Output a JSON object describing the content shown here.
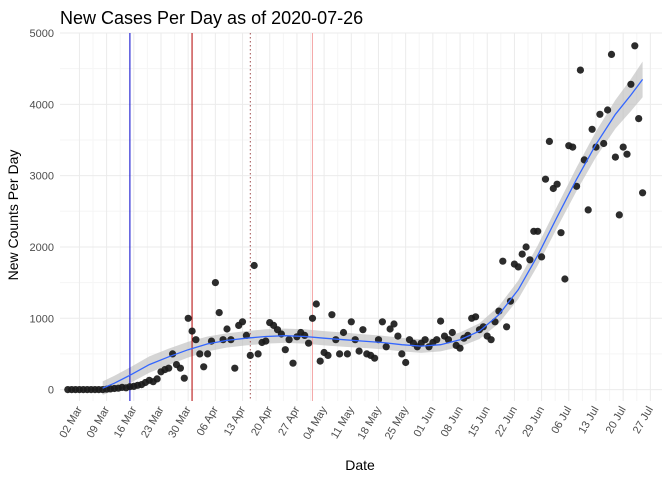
{
  "chart_data": {
    "type": "scatter",
    "title": "New Cases Per Day as of 2020-07-26",
    "xlabel": "Date",
    "ylabel": "New Counts Per Day",
    "x_start": "2020-02-26",
    "xlim": [
      "2020-02-26",
      "2020-07-30"
    ],
    "ylim": [
      -160,
      5000
    ],
    "y_ticks": [
      0,
      1000,
      2000,
      3000,
      4000,
      5000
    ],
    "x_ticks": [
      {
        "date": "2020-03-02",
        "label": "02 Mar"
      },
      {
        "date": "2020-03-09",
        "label": "09 Mar"
      },
      {
        "date": "2020-03-16",
        "label": "16 Mar"
      },
      {
        "date": "2020-03-23",
        "label": "23 Mar"
      },
      {
        "date": "2020-03-30",
        "label": "30 Mar"
      },
      {
        "date": "2020-04-06",
        "label": "06 Apr"
      },
      {
        "date": "2020-04-13",
        "label": "13 Apr"
      },
      {
        "date": "2020-04-20",
        "label": "20 Apr"
      },
      {
        "date": "2020-04-27",
        "label": "27 Apr"
      },
      {
        "date": "2020-05-04",
        "label": "04 May"
      },
      {
        "date": "2020-05-11",
        "label": "11 May"
      },
      {
        "date": "2020-05-18",
        "label": "18 May"
      },
      {
        "date": "2020-05-25",
        "label": "25 May"
      },
      {
        "date": "2020-06-01",
        "label": "01 Jun"
      },
      {
        "date": "2020-06-08",
        "label": "08 Jun"
      },
      {
        "date": "2020-06-15",
        "label": "15 Jun"
      },
      {
        "date": "2020-06-22",
        "label": "22 Jun"
      },
      {
        "date": "2020-06-29",
        "label": "29 Jun"
      },
      {
        "date": "2020-07-06",
        "label": "06 Jul"
      },
      {
        "date": "2020-07-13",
        "label": "13 Jul"
      },
      {
        "date": "2020-07-20",
        "label": "20 Jul"
      },
      {
        "date": "2020-07-27",
        "label": "27 Jul"
      }
    ],
    "grid": true,
    "colors": {
      "points": "#1a1a1a",
      "smooth_line": "#3366ff",
      "ribbon": "#bfbfbf",
      "vline_blue": "#0000cc",
      "vline_red": "#b30000",
      "vline_dotted": "#a05050",
      "vline_pink": "#f4a6a6",
      "grid_major": "#ebebeb",
      "grid_minor": "#f5f5f5"
    },
    "vlines": [
      {
        "date": "2020-03-15",
        "color": "#0000cc",
        "style": "solid"
      },
      {
        "date": "2020-03-31",
        "color": "#b30000",
        "style": "solid"
      },
      {
        "date": "2020-04-15",
        "color": "#a05050",
        "style": "dotted"
      },
      {
        "date": "2020-05-01",
        "color": "#f4a6a6",
        "style": "solid"
      }
    ],
    "series": [
      {
        "type": "scatter",
        "values": [
          [
            "2020-02-28",
            0
          ],
          [
            "2020-02-29",
            0
          ],
          [
            "2020-03-01",
            0
          ],
          [
            "2020-03-02",
            0
          ],
          [
            "2020-03-03",
            0
          ],
          [
            "2020-03-04",
            0
          ],
          [
            "2020-03-05",
            0
          ],
          [
            "2020-03-06",
            0
          ],
          [
            "2020-03-07",
            0
          ],
          [
            "2020-03-08",
            0
          ],
          [
            "2020-03-09",
            5
          ],
          [
            "2020-03-10",
            10
          ],
          [
            "2020-03-11",
            15
          ],
          [
            "2020-03-12",
            20
          ],
          [
            "2020-03-13",
            30
          ],
          [
            "2020-03-14",
            25
          ],
          [
            "2020-03-15",
            40
          ],
          [
            "2020-03-16",
            45
          ],
          [
            "2020-03-17",
            60
          ],
          [
            "2020-03-18",
            70
          ],
          [
            "2020-03-19",
            100
          ],
          [
            "2020-03-20",
            130
          ],
          [
            "2020-03-21",
            110
          ],
          [
            "2020-03-22",
            150
          ],
          [
            "2020-03-23",
            250
          ],
          [
            "2020-03-24",
            280
          ],
          [
            "2020-03-25",
            300
          ],
          [
            "2020-03-26",
            500
          ],
          [
            "2020-03-27",
            350
          ],
          [
            "2020-03-28",
            300
          ],
          [
            "2020-03-29",
            160
          ],
          [
            "2020-03-30",
            1000
          ],
          [
            "2020-03-31",
            820
          ],
          [
            "2020-04-01",
            700
          ],
          [
            "2020-04-02",
            500
          ],
          [
            "2020-04-03",
            320
          ],
          [
            "2020-04-04",
            500
          ],
          [
            "2020-04-05",
            680
          ],
          [
            "2020-04-06",
            1500
          ],
          [
            "2020-04-07",
            1080
          ],
          [
            "2020-04-08",
            700
          ],
          [
            "2020-04-09",
            850
          ],
          [
            "2020-04-10",
            700
          ],
          [
            "2020-04-11",
            300
          ],
          [
            "2020-04-12",
            900
          ],
          [
            "2020-04-13",
            950
          ],
          [
            "2020-04-14",
            760
          ],
          [
            "2020-04-15",
            480
          ],
          [
            "2020-04-16",
            1740
          ],
          [
            "2020-04-17",
            500
          ],
          [
            "2020-04-18",
            660
          ],
          [
            "2020-04-19",
            680
          ],
          [
            "2020-04-20",
            940
          ],
          [
            "2020-04-21",
            900
          ],
          [
            "2020-04-22",
            840
          ],
          [
            "2020-04-23",
            780
          ],
          [
            "2020-04-24",
            560
          ],
          [
            "2020-04-25",
            700
          ],
          [
            "2020-04-26",
            370
          ],
          [
            "2020-04-27",
            740
          ],
          [
            "2020-04-28",
            800
          ],
          [
            "2020-04-29",
            760
          ],
          [
            "2020-04-30",
            650
          ],
          [
            "2020-05-01",
            1000
          ],
          [
            "2020-05-02",
            1200
          ],
          [
            "2020-05-03",
            400
          ],
          [
            "2020-05-04",
            520
          ],
          [
            "2020-05-05",
            480
          ],
          [
            "2020-05-06",
            1050
          ],
          [
            "2020-05-07",
            700
          ],
          [
            "2020-05-08",
            500
          ],
          [
            "2020-05-09",
            800
          ],
          [
            "2020-05-10",
            500
          ],
          [
            "2020-05-11",
            950
          ],
          [
            "2020-05-12",
            700
          ],
          [
            "2020-05-13",
            540
          ],
          [
            "2020-05-14",
            840
          ],
          [
            "2020-05-15",
            500
          ],
          [
            "2020-05-16",
            480
          ],
          [
            "2020-05-17",
            440
          ],
          [
            "2020-05-18",
            700
          ],
          [
            "2020-05-19",
            950
          ],
          [
            "2020-05-20",
            600
          ],
          [
            "2020-05-21",
            850
          ],
          [
            "2020-05-22",
            920
          ],
          [
            "2020-05-23",
            750
          ],
          [
            "2020-05-24",
            500
          ],
          [
            "2020-05-25",
            380
          ],
          [
            "2020-05-26",
            700
          ],
          [
            "2020-05-27",
            650
          ],
          [
            "2020-05-28",
            600
          ],
          [
            "2020-05-29",
            650
          ],
          [
            "2020-05-30",
            700
          ],
          [
            "2020-05-31",
            600
          ],
          [
            "2020-06-01",
            660
          ],
          [
            "2020-06-02",
            700
          ],
          [
            "2020-06-03",
            960
          ],
          [
            "2020-06-04",
            750
          ],
          [
            "2020-06-05",
            700
          ],
          [
            "2020-06-06",
            800
          ],
          [
            "2020-06-07",
            620
          ],
          [
            "2020-06-08",
            580
          ],
          [
            "2020-06-09",
            720
          ],
          [
            "2020-06-10",
            760
          ],
          [
            "2020-06-11",
            1000
          ],
          [
            "2020-06-12",
            1020
          ],
          [
            "2020-06-13",
            840
          ],
          [
            "2020-06-14",
            880
          ],
          [
            "2020-06-15",
            750
          ],
          [
            "2020-06-16",
            700
          ],
          [
            "2020-06-17",
            950
          ],
          [
            "2020-06-18",
            1100
          ],
          [
            "2020-06-19",
            1800
          ],
          [
            "2020-06-20",
            880
          ],
          [
            "2020-06-21",
            1240
          ],
          [
            "2020-06-22",
            1760
          ],
          [
            "2020-06-23",
            1720
          ],
          [
            "2020-06-24",
            1900
          ],
          [
            "2020-06-25",
            2000
          ],
          [
            "2020-06-26",
            1820
          ],
          [
            "2020-06-27",
            2220
          ],
          [
            "2020-06-28",
            2220
          ],
          [
            "2020-06-29",
            1860
          ],
          [
            "2020-06-30",
            2950
          ],
          [
            "2020-07-01",
            3480
          ],
          [
            "2020-07-02",
            2820
          ],
          [
            "2020-07-03",
            2880
          ],
          [
            "2020-07-04",
            2200
          ],
          [
            "2020-07-05",
            1550
          ],
          [
            "2020-07-06",
            3420
          ],
          [
            "2020-07-07",
            3400
          ],
          [
            "2020-07-08",
            2850
          ],
          [
            "2020-07-09",
            4480
          ],
          [
            "2020-07-10",
            3220
          ],
          [
            "2020-07-11",
            2520
          ],
          [
            "2020-07-12",
            3650
          ],
          [
            "2020-07-13",
            3400
          ],
          [
            "2020-07-14",
            3860
          ],
          [
            "2020-07-15",
            3450
          ],
          [
            "2020-07-16",
            3920
          ],
          [
            "2020-07-17",
            4700
          ],
          [
            "2020-07-18",
            3260
          ],
          [
            "2020-07-19",
            2450
          ],
          [
            "2020-07-20",
            3400
          ],
          [
            "2020-07-21",
            3300
          ],
          [
            "2020-07-22",
            4280
          ],
          [
            "2020-07-23",
            4820
          ],
          [
            "2020-07-24",
            3800
          ],
          [
            "2020-07-25",
            2760
          ]
        ]
      },
      {
        "type": "smooth",
        "values": [
          [
            "2020-03-08",
            20
          ],
          [
            "2020-03-11",
            90
          ],
          [
            "2020-03-15",
            200
          ],
          [
            "2020-03-20",
            350
          ],
          [
            "2020-03-25",
            460
          ],
          [
            "2020-03-30",
            560
          ],
          [
            "2020-04-04",
            640
          ],
          [
            "2020-04-09",
            690
          ],
          [
            "2020-04-14",
            720
          ],
          [
            "2020-04-19",
            745
          ],
          [
            "2020-04-24",
            755
          ],
          [
            "2020-04-29",
            745
          ],
          [
            "2020-05-04",
            720
          ],
          [
            "2020-05-09",
            700
          ],
          [
            "2020-05-14",
            680
          ],
          [
            "2020-05-19",
            660
          ],
          [
            "2020-05-24",
            630
          ],
          [
            "2020-05-29",
            610
          ],
          [
            "2020-06-03",
            630
          ],
          [
            "2020-06-08",
            700
          ],
          [
            "2020-06-13",
            820
          ],
          [
            "2020-06-18",
            1050
          ],
          [
            "2020-06-23",
            1400
          ],
          [
            "2020-06-28",
            1880
          ],
          [
            "2020-07-03",
            2420
          ],
          [
            "2020-07-08",
            2950
          ],
          [
            "2020-07-13",
            3440
          ],
          [
            "2020-07-18",
            3860
          ],
          [
            "2020-07-22",
            4130
          ],
          [
            "2020-07-25",
            4350
          ]
        ],
        "ci_halfwidth": [
          95,
          105,
          110,
          115,
          115,
          110,
          105,
          100,
          100,
          100,
          100,
          100,
          100,
          100,
          95,
          95,
          95,
          95,
          95,
          100,
          110,
          120,
          130,
          140,
          150,
          165,
          180,
          200,
          225,
          250
        ]
      }
    ]
  }
}
